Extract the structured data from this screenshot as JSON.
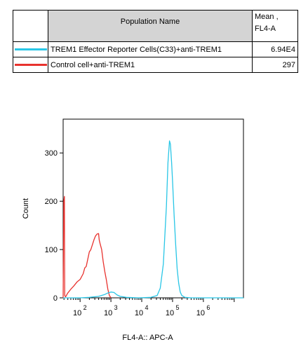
{
  "table": {
    "header": {
      "name": "Population Name",
      "mean": "Mean ,",
      "mean_sub": "FL4-A"
    },
    "rows": [
      {
        "color": "#29c6e6",
        "name": "TREM1 Effector Reporter Cells(C33)+anti-TREM1",
        "value": "6.94E4"
      },
      {
        "color": "#e8322e",
        "name": "Control cell+anti-TREM1",
        "value": "297"
      }
    ]
  },
  "chart_data": {
    "type": "line",
    "xlabel": "FL4-A:: APC-A",
    "ylabel": "Count",
    "x_scale": "log",
    "xlim_log10": [
      1.45,
      7.3
    ],
    "ylim": [
      0,
      370
    ],
    "y_ticks": [
      "0",
      "100",
      "200",
      "300"
    ],
    "y_tick_values": [
      0,
      100,
      200,
      300
    ],
    "x_ticks": [
      {
        "base": "10",
        "exp": "2",
        "log10": 2
      },
      {
        "base": "10",
        "exp": "3",
        "log10": 3
      },
      {
        "base": "10",
        "exp": "4",
        "log10": 4
      },
      {
        "base": "10",
        "exp": "5",
        "log10": 5
      },
      {
        "base": "10",
        "exp": "6",
        "log10": 6
      }
    ],
    "series": [
      {
        "name": "Control cell+anti-TREM1",
        "color": "#e8322e",
        "points": [
          [
            1.45,
            0
          ],
          [
            1.47,
            200
          ],
          [
            1.49,
            210
          ],
          [
            1.5,
            5
          ],
          [
            1.53,
            2
          ],
          [
            1.6,
            10
          ],
          [
            1.7,
            18
          ],
          [
            1.8,
            25
          ],
          [
            1.9,
            33
          ],
          [
            2.0,
            38
          ],
          [
            2.1,
            50
          ],
          [
            2.15,
            62
          ],
          [
            2.2,
            65
          ],
          [
            2.25,
            80
          ],
          [
            2.3,
            95
          ],
          [
            2.35,
            100
          ],
          [
            2.4,
            110
          ],
          [
            2.45,
            120
          ],
          [
            2.5,
            128
          ],
          [
            2.55,
            132
          ],
          [
            2.6,
            133
          ],
          [
            2.62,
            120
          ],
          [
            2.65,
            112
          ],
          [
            2.7,
            100
          ],
          [
            2.75,
            75
          ],
          [
            2.8,
            55
          ],
          [
            2.85,
            38
          ],
          [
            2.9,
            18
          ],
          [
            2.95,
            5
          ],
          [
            3.0,
            0
          ]
        ]
      },
      {
        "name": "TREM1 Effector Reporter Cells(C33)+anti-TREM1",
        "color": "#29c6e6",
        "points": [
          [
            1.45,
            0
          ],
          [
            2.0,
            0
          ],
          [
            2.3,
            1
          ],
          [
            2.6,
            3
          ],
          [
            2.8,
            7
          ],
          [
            2.9,
            10
          ],
          [
            3.0,
            12
          ],
          [
            3.1,
            11
          ],
          [
            3.2,
            6
          ],
          [
            3.3,
            3
          ],
          [
            3.5,
            1
          ],
          [
            3.9,
            0
          ],
          [
            4.3,
            1
          ],
          [
            4.5,
            5
          ],
          [
            4.6,
            20
          ],
          [
            4.7,
            70
          ],
          [
            4.8,
            190
          ],
          [
            4.85,
            280
          ],
          [
            4.9,
            325
          ],
          [
            4.93,
            318
          ],
          [
            4.97,
            280
          ],
          [
            5.0,
            240
          ],
          [
            5.05,
            170
          ],
          [
            5.1,
            110
          ],
          [
            5.15,
            60
          ],
          [
            5.2,
            30
          ],
          [
            5.25,
            12
          ],
          [
            5.3,
            5
          ],
          [
            5.4,
            1
          ],
          [
            5.6,
            0
          ],
          [
            7.3,
            0
          ]
        ]
      }
    ]
  }
}
